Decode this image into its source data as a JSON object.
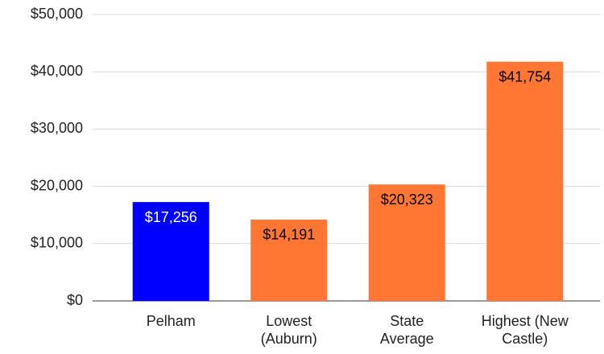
{
  "chart_data": {
    "type": "bar",
    "categories": [
      "Pelham",
      "Lowest\n(Auburn)",
      "State\nAverage",
      "Highest (New\nCastle)"
    ],
    "values": [
      17256,
      14191,
      20323,
      41754
    ],
    "value_labels": [
      "$17,256",
      "$14,191",
      "$20,323",
      "$41,754"
    ],
    "colors": [
      "#0000ff",
      "#ff7733",
      "#ff7733",
      "#ff7733"
    ],
    "label_colors": [
      "#ffffff",
      "#000000",
      "#000000",
      "#000000"
    ],
    "ylim": [
      0,
      50000
    ],
    "yticks": [
      {
        "value": 0,
        "label": "$0"
      },
      {
        "value": 10000,
        "label": "$10,000"
      },
      {
        "value": 20000,
        "label": "$20,000"
      },
      {
        "value": 30000,
        "label": "$30,000"
      },
      {
        "value": 40000,
        "label": "$40,000"
      },
      {
        "value": 50000,
        "label": "$50,000"
      }
    ],
    "grid": true
  }
}
